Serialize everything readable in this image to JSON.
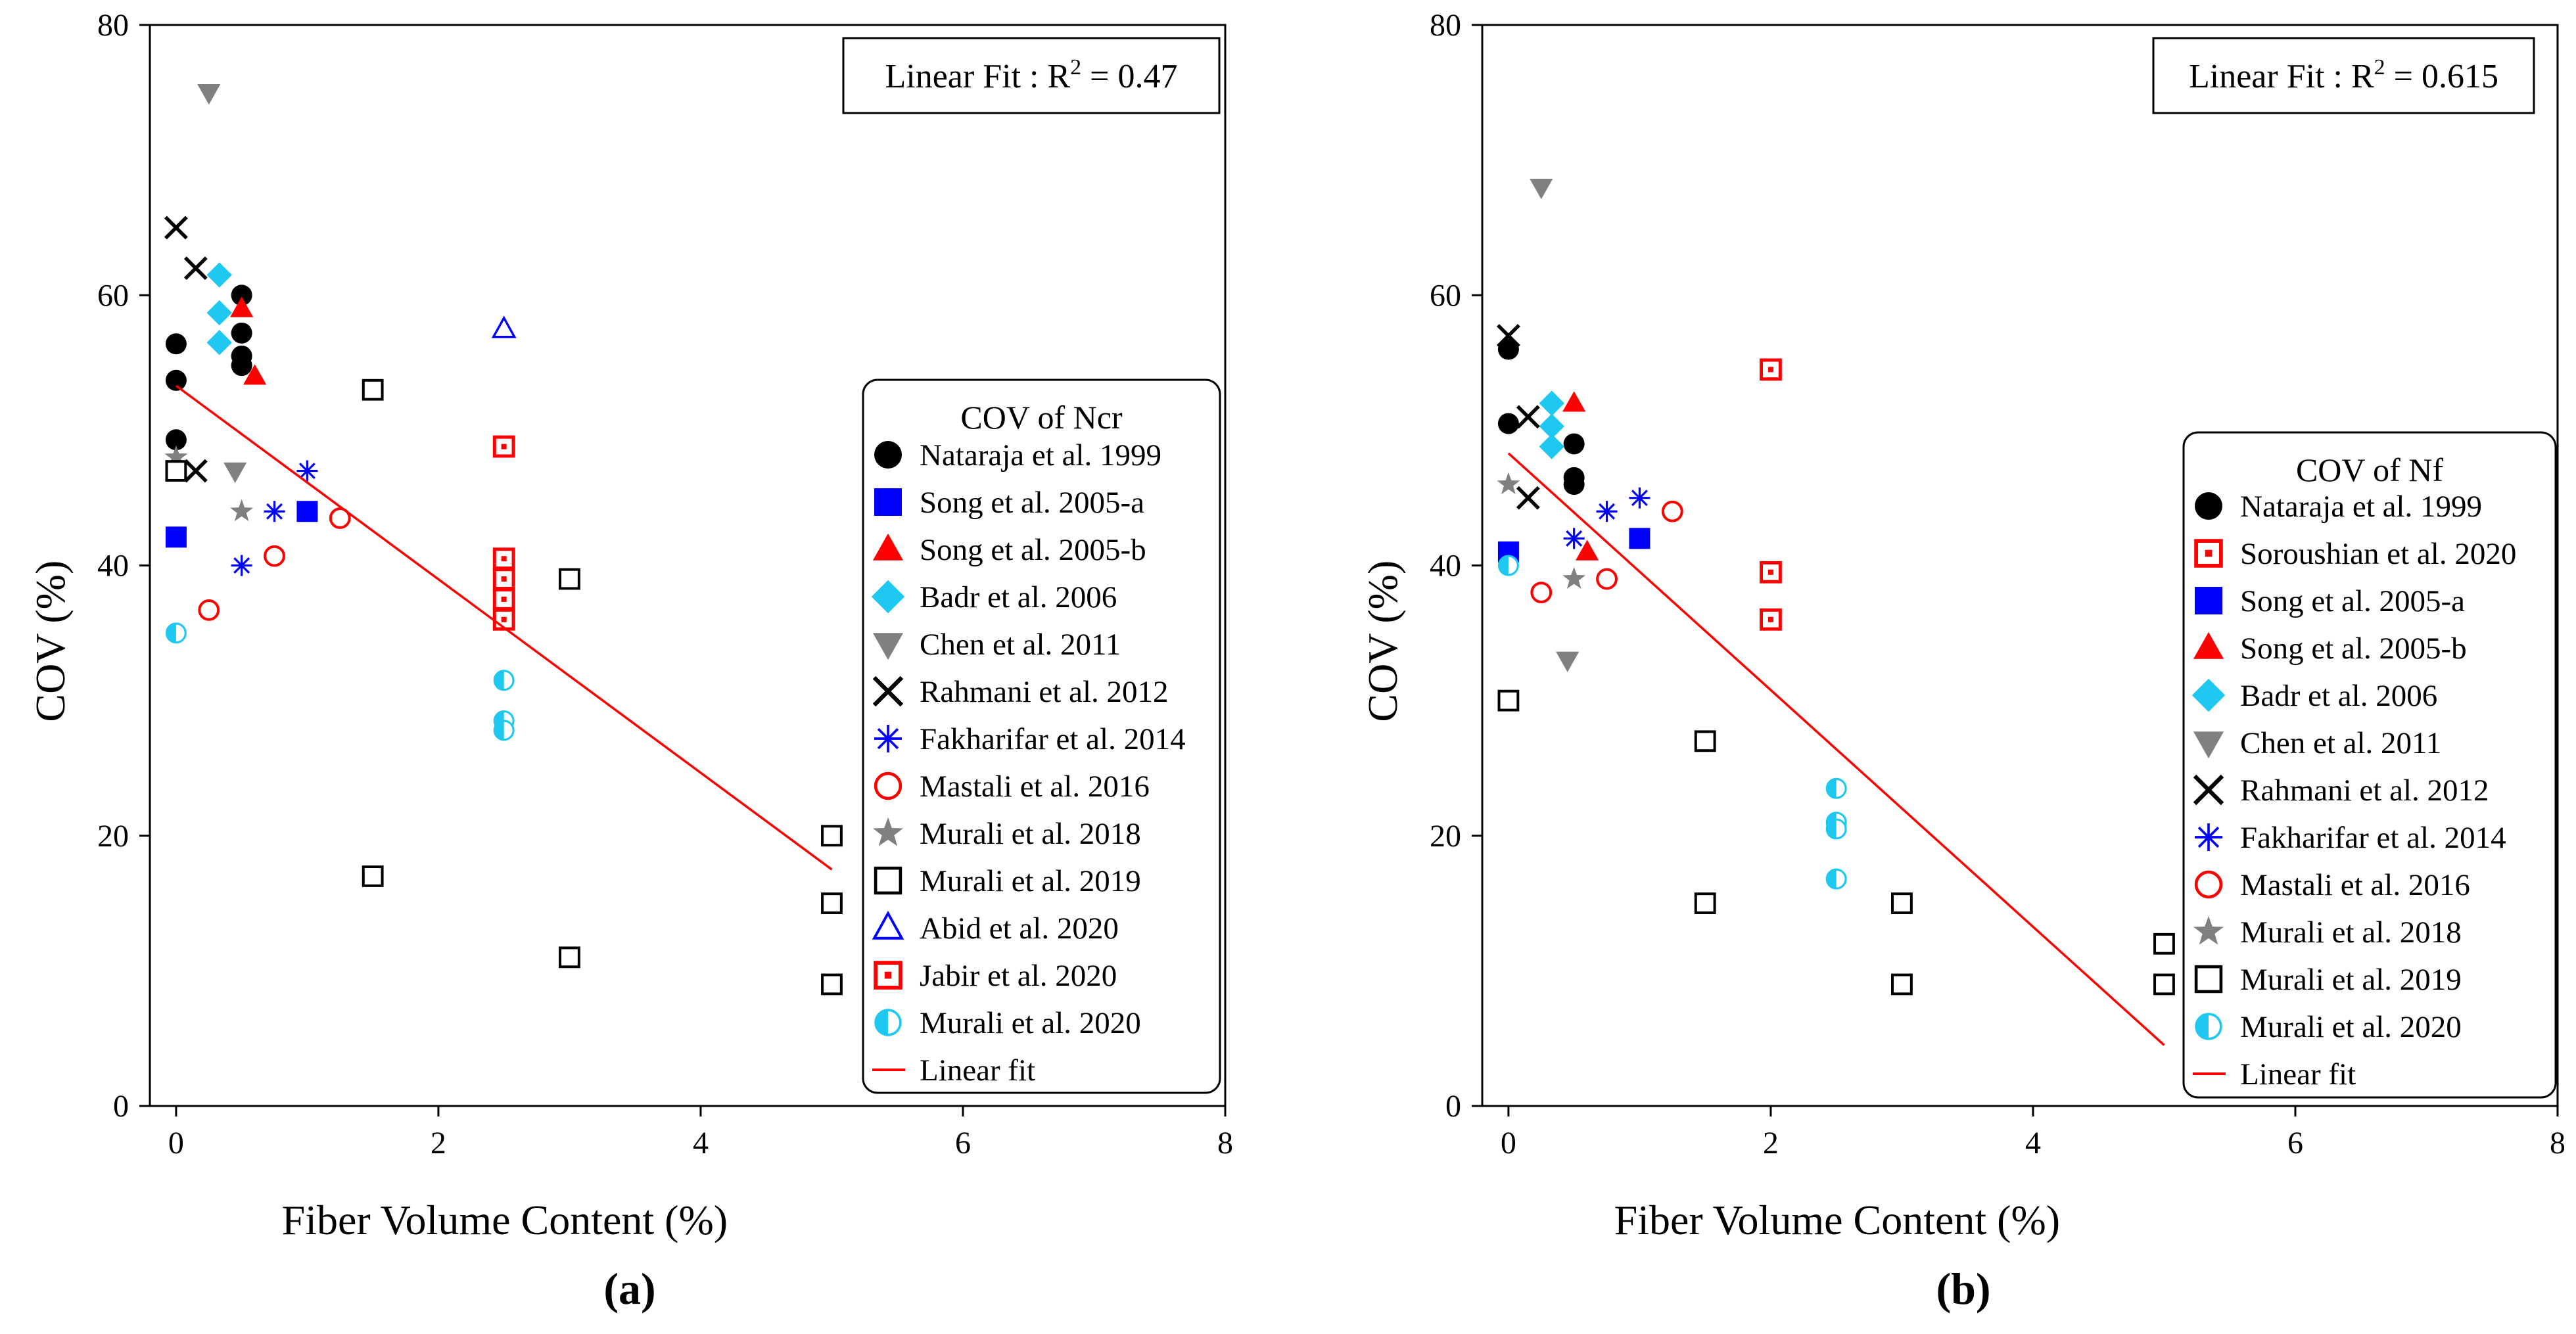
{
  "chart_data": [
    {
      "type": "scatter",
      "panel_label": "(a)",
      "xlabel": "Fiber Volume Content (%)",
      "ylabel": "COV (%)",
      "xlim": [
        -0.2,
        8
      ],
      "ylim": [
        0,
        80
      ],
      "x_ticks": [
        0,
        2,
        4,
        6,
        8
      ],
      "y_ticks": [
        0,
        20,
        40,
        60,
        80
      ],
      "fit_label": "Linear Fit : R",
      "fit_sup": "2",
      "fit_value": " = 0.47",
      "legend_title": "COV of Ncr",
      "legend_position": "right",
      "fit_line": {
        "name": "Linear fit",
        "color": "#ff0000",
        "x": [
          0,
          5
        ],
        "y": [
          53.3,
          17.5
        ]
      },
      "series": [
        {
          "name": "Nataraja et al. 1999",
          "marker": "circle-filled",
          "color": "#000000",
          "points": [
            [
              0,
              56.4
            ],
            [
              0,
              53.7
            ],
            [
              0,
              49.3
            ],
            [
              0.5,
              60.0
            ],
            [
              0.5,
              57.2
            ],
            [
              0.5,
              55.5
            ],
            [
              0.5,
              54.8
            ]
          ]
        },
        {
          "name": "Song et al. 2005-a",
          "marker": "square-filled",
          "color": "#0000ff",
          "points": [
            [
              0,
              42.1
            ],
            [
              1.0,
              44.0
            ]
          ]
        },
        {
          "name": "Song et al. 2005-b",
          "marker": "triangle-filled",
          "color": "#ff0000",
          "points": [
            [
              0.5,
              59.0
            ],
            [
              0.6,
              54.0
            ]
          ]
        },
        {
          "name": "Badr et al. 2006",
          "marker": "diamond-filled",
          "color": "#1ec8f0",
          "points": [
            [
              0.33,
              61.5
            ],
            [
              0.33,
              58.7
            ],
            [
              0.33,
              56.5
            ]
          ]
        },
        {
          "name": "Chen et al. 2011",
          "marker": "triangle-down-filled",
          "color": "#808080",
          "points": [
            [
              0.25,
              75.0
            ],
            [
              0.45,
              47.0
            ]
          ]
        },
        {
          "name": "Rahmani et al. 2012",
          "marker": "x",
          "color": "#000000",
          "points": [
            [
              0,
              65.0
            ],
            [
              0.15,
              62.0
            ],
            [
              0.15,
              47.0
            ]
          ]
        },
        {
          "name": "Fakharifar et al. 2014",
          "marker": "asterisk",
          "color": "#0000ff",
          "points": [
            [
              0.5,
              40.0
            ],
            [
              0.75,
              44.0
            ],
            [
              1.0,
              47.0
            ]
          ]
        },
        {
          "name": "Mastali et al. 2016",
          "marker": "circle-open",
          "color": "#ff0000",
          "points": [
            [
              0.25,
              36.7
            ],
            [
              0.75,
              40.7
            ],
            [
              1.25,
              43.5
            ]
          ]
        },
        {
          "name": "Murali et al. 2018",
          "marker": "star",
          "color": "#808080",
          "points": [
            [
              0,
              48.0
            ],
            [
              0.5,
              44.0
            ]
          ]
        },
        {
          "name": "Murali et al. 2019",
          "marker": "square-open",
          "color": "#000000",
          "points": [
            [
              0,
              47.0
            ],
            [
              1.5,
              53.0
            ],
            [
              1.5,
              17.0
            ],
            [
              3.0,
              39.0
            ],
            [
              3.0,
              11.0
            ],
            [
              5.0,
              20.0
            ],
            [
              5.0,
              15.0
            ],
            [
              5.0,
              9.0
            ]
          ]
        },
        {
          "name": "Abid et al. 2020",
          "marker": "triangle-open",
          "color": "#0000ff",
          "points": [
            [
              2.5,
              57.5
            ]
          ]
        },
        {
          "name": "Jabir et al. 2020",
          "marker": "square-dot",
          "color": "#ff0000",
          "points": [
            [
              2.5,
              48.8
            ],
            [
              2.5,
              40.5
            ],
            [
              2.5,
              39.0
            ],
            [
              2.5,
              37.5
            ],
            [
              2.5,
              36.0
            ]
          ]
        },
        {
          "name": "Murali et al. 2020",
          "marker": "circle-half",
          "color": "#1ec8f0",
          "points": [
            [
              0,
              35.0
            ],
            [
              2.5,
              31.5
            ],
            [
              2.5,
              28.5
            ],
            [
              2.5,
              27.8
            ]
          ]
        }
      ]
    },
    {
      "type": "scatter",
      "panel_label": "(b)",
      "xlabel": "Fiber Volume Content (%)",
      "ylabel": "COV (%)",
      "xlim": [
        -0.2,
        8
      ],
      "ylim": [
        0,
        80
      ],
      "x_ticks": [
        0,
        2,
        4,
        6,
        8
      ],
      "y_ticks": [
        0,
        20,
        40,
        60,
        80
      ],
      "fit_label": "Linear Fit : R",
      "fit_sup": "2",
      "fit_value": " = 0.615",
      "legend_title": "COV of Nf",
      "legend_position": "right",
      "fit_line": {
        "name": "Linear fit",
        "color": "#ff0000",
        "x": [
          0,
          5
        ],
        "y": [
          48.3,
          4.5
        ]
      },
      "series": [
        {
          "name": "Nataraja et al. 1999",
          "marker": "circle-filled",
          "color": "#000000",
          "points": [
            [
              0,
              56.0
            ],
            [
              0,
              50.5
            ],
            [
              0.5,
              49.0
            ],
            [
              0.5,
              46.5
            ],
            [
              0.5,
              46.0
            ]
          ]
        },
        {
          "name": "Soroushian et al. 2020",
          "marker": "square-dot",
          "color": "#ff0000",
          "points": [
            [
              2.0,
              54.5
            ],
            [
              2.0,
              39.5
            ],
            [
              2.0,
              36.0
            ]
          ]
        },
        {
          "name": "Song et al. 2005-a",
          "marker": "square-filled",
          "color": "#0000ff",
          "points": [
            [
              0,
              41.0
            ],
            [
              1.0,
              42.0
            ]
          ]
        },
        {
          "name": "Song et al. 2005-b",
          "marker": "triangle-filled",
          "color": "#ff0000",
          "points": [
            [
              0.5,
              52.0
            ],
            [
              0.6,
              41.0
            ]
          ]
        },
        {
          "name": "Badr et al. 2006",
          "marker": "diamond-filled",
          "color": "#1ec8f0",
          "points": [
            [
              0.33,
              52.0
            ],
            [
              0.33,
              50.3
            ],
            [
              0.33,
              48.8
            ]
          ]
        },
        {
          "name": "Chen et al. 2011",
          "marker": "triangle-down-filled",
          "color": "#808080",
          "points": [
            [
              0.25,
              68.0
            ],
            [
              0.45,
              33.0
            ]
          ]
        },
        {
          "name": "Rahmani et al. 2012",
          "marker": "x",
          "color": "#000000",
          "points": [
            [
              0,
              57.0
            ],
            [
              0.15,
              51.0
            ],
            [
              0.15,
              45.0
            ]
          ]
        },
        {
          "name": "Fakharifar et al. 2014",
          "marker": "asterisk",
          "color": "#0000ff",
          "points": [
            [
              0.5,
              42.0
            ],
            [
              0.75,
              44.0
            ],
            [
              1.0,
              45.0
            ]
          ]
        },
        {
          "name": "Mastali et al. 2016",
          "marker": "circle-open",
          "color": "#ff0000",
          "points": [
            [
              0.25,
              38.0
            ],
            [
              0.75,
              39.0
            ],
            [
              1.25,
              44.0
            ]
          ]
        },
        {
          "name": "Murali et al. 2018",
          "marker": "star",
          "color": "#808080",
          "points": [
            [
              0,
              46.0
            ],
            [
              0.5,
              39.0
            ]
          ]
        },
        {
          "name": "Murali et al. 2019",
          "marker": "square-open",
          "color": "#000000",
          "points": [
            [
              0,
              30.0
            ],
            [
              1.5,
              27.0
            ],
            [
              1.5,
              15.0
            ],
            [
              3.0,
              15.0
            ],
            [
              3.0,
              9.0
            ],
            [
              5.0,
              12.0
            ],
            [
              5.0,
              9.0
            ]
          ]
        },
        {
          "name": "Murali et al. 2020",
          "marker": "circle-half",
          "color": "#1ec8f0",
          "points": [
            [
              0,
              40.0
            ],
            [
              2.5,
              23.5
            ],
            [
              2.5,
              21.0
            ],
            [
              2.5,
              20.5
            ],
            [
              2.5,
              16.8
            ]
          ]
        }
      ]
    }
  ]
}
